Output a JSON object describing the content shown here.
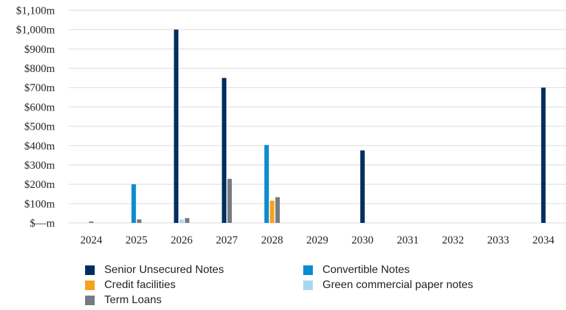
{
  "chart_data": {
    "type": "bar",
    "categories": [
      "2024",
      "2025",
      "2026",
      "2027",
      "2028",
      "2029",
      "2030",
      "2031",
      "2032",
      "2033",
      "2034"
    ],
    "ylim": [
      0,
      1100
    ],
    "y_ticks": [
      {
        "value": 0,
        "label": "$—m"
      },
      {
        "value": 100,
        "label": "$100m"
      },
      {
        "value": 200,
        "label": "$200m"
      },
      {
        "value": 300,
        "label": "$300m"
      },
      {
        "value": 400,
        "label": "$400m"
      },
      {
        "value": 500,
        "label": "$500m"
      },
      {
        "value": 600,
        "label": "$600m"
      },
      {
        "value": 700,
        "label": "$700m"
      },
      {
        "value": 800,
        "label": "$800m"
      },
      {
        "value": 900,
        "label": "$900m"
      },
      {
        "value": 1000,
        "label": "$1,000m"
      },
      {
        "value": 1100,
        "label": "$1,100m"
      }
    ],
    "grid": true,
    "legend_position": "bottom",
    "series": [
      {
        "name": "Senior Unsecured Notes",
        "color": "#002f5f",
        "values": [
          0,
          0,
          1000,
          750,
          0,
          0,
          375,
          0,
          0,
          0,
          700
        ]
      },
      {
        "name": "Convertible Notes",
        "color": "#0a8ccf",
        "values": [
          0,
          200,
          0,
          0,
          403,
          0,
          0,
          0,
          0,
          0,
          0
        ]
      },
      {
        "name": "Credit facilities",
        "color": "#f7a21b",
        "values": [
          0,
          0,
          0,
          0,
          115,
          0,
          0,
          0,
          0,
          0,
          0
        ]
      },
      {
        "name": "Green commercial paper notes",
        "color": "#a9d8ee",
        "values": [
          0,
          0,
          17,
          0,
          0,
          0,
          0,
          0,
          0,
          0,
          0
        ]
      },
      {
        "name": "Term Loans",
        "color": "#737b83",
        "values": [
          7,
          18,
          25,
          228,
          133,
          0,
          0,
          0,
          0,
          0,
          0
        ]
      }
    ]
  }
}
